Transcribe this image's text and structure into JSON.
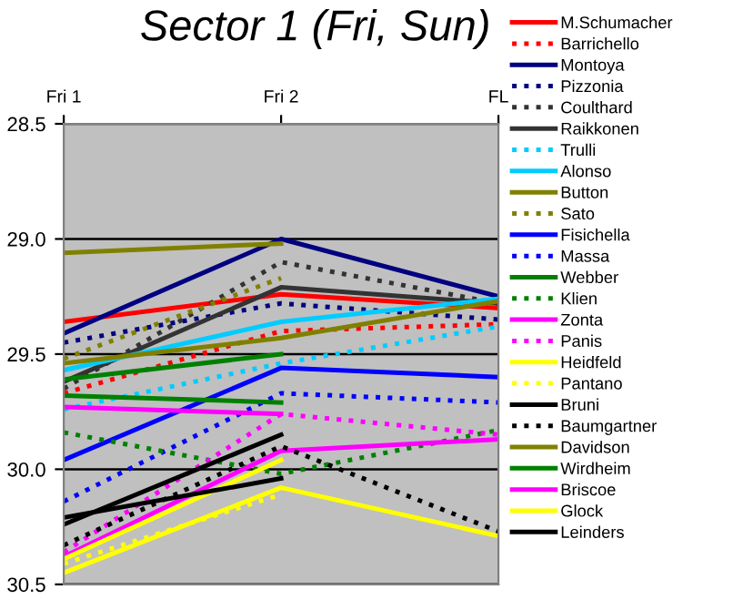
{
  "chart_data": {
    "type": "line",
    "title": "Sector 1 (Fri, Sun)",
    "categories": [
      "Fri 1",
      "Fri 2",
      "FL"
    ],
    "ylim": [
      30.5,
      28.5
    ],
    "yticks": [
      28.5,
      {
        "value": 29,
        "label": "29.0"
      },
      29.5,
      {
        "value": 30,
        "label": "30.0"
      },
      30.5
    ],
    "grid": "y",
    "legend": "right",
    "marker": "none",
    "series": [
      {
        "name": "M.Schumacher",
        "color": "#ff0000",
        "line_style": "solid",
        "values": [
          29.36,
          29.24,
          29.3
        ]
      },
      {
        "name": "Barrichello",
        "color": "#ff0000",
        "line_style": "dotted",
        "values": [
          29.67,
          29.4,
          29.37
        ]
      },
      {
        "name": "Montoya",
        "color": "#000080",
        "line_style": "solid",
        "values": [
          29.41,
          29.0,
          29.25
        ]
      },
      {
        "name": "Pizzonia",
        "color": "#000080",
        "line_style": "dotted",
        "values": [
          29.45,
          29.28,
          29.35
        ]
      },
      {
        "name": "Coulthard",
        "color": "#333333",
        "line_style": "dotted",
        "values": [
          29.65,
          29.1,
          29.28
        ]
      },
      {
        "name": "Raikkonen",
        "color": "#333333",
        "line_style": "solid",
        "values": [
          29.62,
          29.21,
          29.28
        ]
      },
      {
        "name": "Trulli",
        "color": "#00ccff",
        "line_style": "dotted",
        "values": [
          29.74,
          29.54,
          29.38
        ]
      },
      {
        "name": "Alonso",
        "color": "#00ccff",
        "line_style": "solid",
        "values": [
          29.57,
          29.36,
          29.26
        ]
      },
      {
        "name": "Button",
        "color": "#808000",
        "line_style": "solid",
        "values": [
          29.54,
          29.43,
          29.27
        ]
      },
      {
        "name": "Sato",
        "color": "#808000",
        "line_style": "dotted",
        "values": [
          29.52,
          29.17,
          null
        ]
      },
      {
        "name": "Fisichella",
        "color": "#0000ff",
        "line_style": "solid",
        "values": [
          29.96,
          29.56,
          29.6
        ]
      },
      {
        "name": "Massa",
        "color": "#0000ff",
        "line_style": "dotted",
        "values": [
          30.14,
          29.67,
          29.71
        ]
      },
      {
        "name": "Webber",
        "color": "#008000",
        "line_style": "solid",
        "values": [
          29.68,
          29.71,
          null
        ]
      },
      {
        "name": "Klien",
        "color": "#008000",
        "line_style": "dotted",
        "values": [
          29.84,
          30.02,
          29.83
        ]
      },
      {
        "name": "Zonta",
        "color": "#ff00ff",
        "line_style": "solid",
        "values": [
          30.38,
          29.92,
          29.87
        ]
      },
      {
        "name": "Panis",
        "color": "#ff00ff",
        "line_style": "dotted",
        "values": [
          30.36,
          29.76,
          29.85
        ]
      },
      {
        "name": "Heidfeld",
        "color": "#ffff00",
        "line_style": "solid",
        "values": [
          30.45,
          30.08,
          30.29
        ]
      },
      {
        "name": "Pantano",
        "color": "#ffff00",
        "line_style": "dotted",
        "values": [
          30.41,
          30.11,
          null
        ]
      },
      {
        "name": "Bruni",
        "color": "#000000",
        "line_style": "solid",
        "values": [
          30.24,
          29.85,
          null
        ]
      },
      {
        "name": "Baumgartner",
        "color": "#000000",
        "line_style": "dotted",
        "values": [
          30.33,
          29.9,
          30.27
        ]
      },
      {
        "name": "Davidson",
        "color": "#808000",
        "line_style": "solid",
        "values": [
          29.06,
          29.02,
          null
        ]
      },
      {
        "name": "Wirdheim",
        "color": "#008000",
        "line_style": "solid",
        "values": [
          29.61,
          29.5,
          null
        ]
      },
      {
        "name": "Briscoe",
        "color": "#ff00ff",
        "line_style": "solid",
        "values": [
          29.73,
          29.76,
          null
        ]
      },
      {
        "name": "Glock",
        "color": "#ffff00",
        "line_style": "solid",
        "values": [
          30.39,
          29.96,
          null
        ]
      },
      {
        "name": "Leinders",
        "color": "#000000",
        "line_style": "solid",
        "values": [
          30.21,
          30.04,
          null
        ]
      }
    ]
  }
}
